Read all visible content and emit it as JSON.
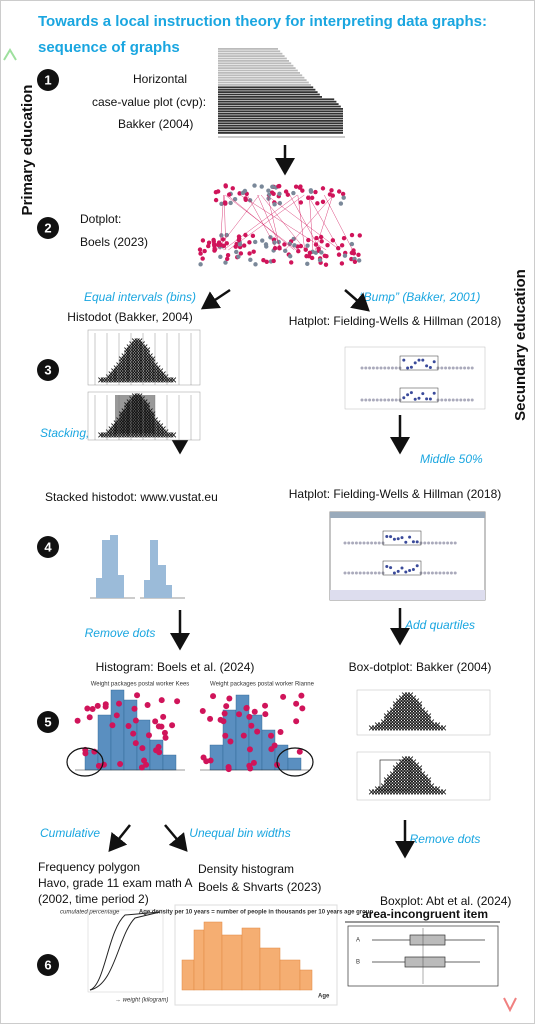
{
  "title": [
    "Towards a local instruction theory for interpreting data graphs:",
    "sequence of graphs"
  ],
  "sides": {
    "primary": "Primary education",
    "secondary": "Secundary education"
  },
  "steps": [
    "1",
    "2",
    "3",
    "4",
    "5",
    "6"
  ],
  "nodes": [
    {
      "lines": [
        "Horizontal",
        "case-value plot (cvp):",
        "Bakker (2004)"
      ]
    },
    {
      "lines": [
        "Dotplot:",
        "Boels (2023)"
      ]
    },
    {
      "lines": [
        "Histodot (Bakker, 2004)"
      ]
    },
    {
      "lines": [
        "Hatplot: Fielding-Wells & Hillman (2018)"
      ]
    },
    {
      "lines": [
        "Stacked histodot: www.vustat.eu"
      ]
    },
    {
      "lines": [
        "Hatplot: Fielding-Wells & Hillman (2018)"
      ]
    },
    {
      "lines": [
        "Histogram: Boels et al. (2024)"
      ]
    },
    {
      "lines": [
        "Box-dotplot: Bakker (2004)"
      ]
    },
    {
      "lines": [
        "Frequency polygon",
        "Havo, grade 11 exam math A",
        "(2002, time period 2)"
      ]
    },
    {
      "lines": [
        "Density histogram",
        "Boels & Shvarts (2023)"
      ]
    },
    {
      "lines": [
        "Boxplot: Abt et al. (2024)"
      ]
    }
  ],
  "edges": [
    "Equal intervals (bins)",
    "“Bump” (Bakker, 2001)",
    "Stacking; values visible",
    "Middle 50%",
    "Remove dots",
    "Add quartiles",
    "Cumulative",
    "Unequal bin widths",
    "Remove dots"
  ],
  "thumb_texts": [
    "Weight packages postal worker Kees",
    "Weight packages postal worker Rianne",
    "cumulated percentage",
    "→ weight (kilogram)",
    "Age density per 10 years = number of people in thousands per 10 years age group",
    "Age",
    "area-incongruent item",
    "A",
    "B"
  ]
}
